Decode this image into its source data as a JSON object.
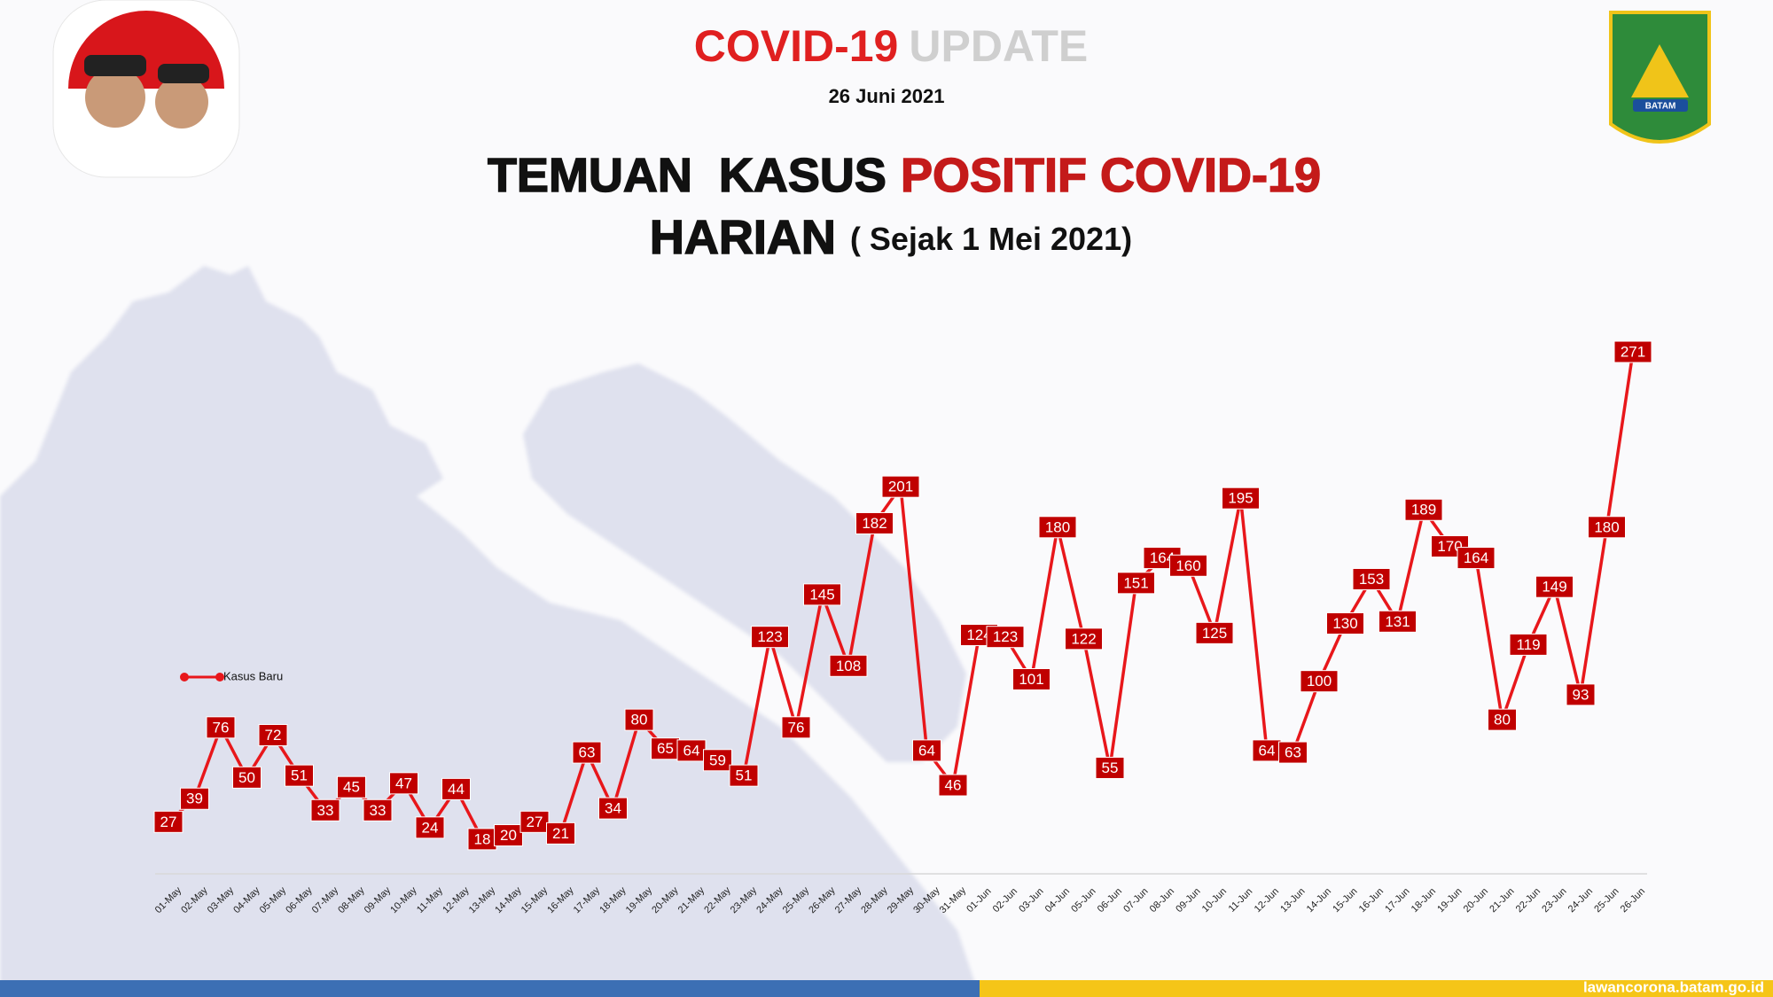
{
  "header": {
    "badge": [
      "COVID-19",
      "UPDATE"
    ],
    "date": "26 Juni 2021",
    "logo": "BATAM"
  },
  "footer": "lawancorona.batam.go.id",
  "chart_data": {
    "type": "line",
    "title": [
      "TEMUAN  KASUS",
      "POSITIF COVID-19",
      "HARIAN",
      "( Sejak 1 Mei 2021)"
    ],
    "categories": [
      "01-May",
      "02-May",
      "03-May",
      "04-May",
      "05-May",
      "06-May",
      "07-May",
      "08-May",
      "09-May",
      "10-May",
      "11-May",
      "12-May",
      "13-May",
      "14-May",
      "15-May",
      "16-May",
      "17-May",
      "18-May",
      "19-May",
      "20-May",
      "21-May",
      "22-May",
      "23-May",
      "24-May",
      "25-May",
      "26-May",
      "27-May",
      "28-May",
      "29-May",
      "30-May",
      "31-May",
      "01-Jun",
      "02-Jun",
      "03-Jun",
      "04-Jun",
      "05-Jun",
      "06-Jun",
      "07-Jun",
      "08-Jun",
      "09-Jun",
      "10-Jun",
      "11-Jun",
      "12-Jun",
      "13-Jun",
      "14-Jun",
      "15-Jun",
      "16-Jun",
      "17-Jun",
      "18-Jun",
      "19-Jun",
      "20-Jun",
      "21-Jun",
      "22-Jun",
      "23-Jun",
      "24-Jun",
      "25-Jun",
      "26-Jun"
    ],
    "series": [
      {
        "name": "Kasus Baru",
        "color": "#e8171b",
        "values": [
          27,
          39,
          76,
          50,
          72,
          51,
          33,
          45,
          33,
          47,
          24,
          44,
          18,
          20,
          27,
          21,
          63,
          34,
          80,
          65,
          64,
          59,
          51,
          123,
          76,
          145,
          108,
          182,
          201,
          64,
          46,
          124,
          123,
          101,
          180,
          122,
          55,
          151,
          164,
          160,
          125,
          195,
          64,
          63,
          100,
          130,
          153,
          131,
          189,
          170,
          164,
          80,
          119,
          149,
          93,
          180,
          271
        ]
      }
    ],
    "ylim": [
      0,
      300
    ],
    "label_color": "#c00000"
  }
}
